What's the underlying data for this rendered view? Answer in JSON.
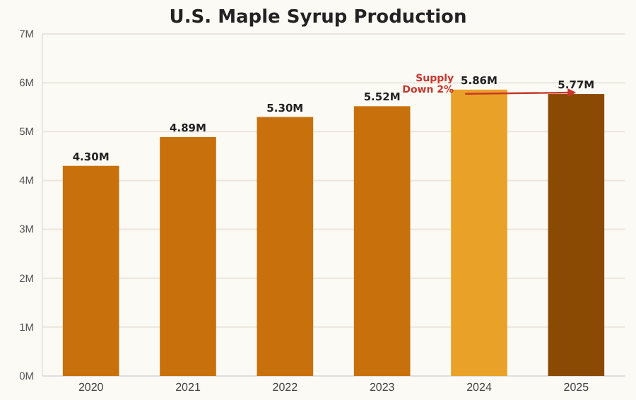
{
  "chart_data": {
    "type": "bar",
    "title": "U.S. Maple Syrup Production",
    "categories": [
      "2020",
      "2021",
      "2022",
      "2023",
      "2024",
      "2025"
    ],
    "values": [
      4.3,
      4.89,
      5.3,
      5.52,
      5.86,
      5.77
    ],
    "colors": [
      "#c8700c",
      "#c8700c",
      "#c8700c",
      "#c8700c",
      "#e9a227",
      "#8b4a04"
    ],
    "value_labels": [
      "4.30M",
      "4.89M",
      "5.30M",
      "5.52M",
      "5.86M",
      "5.77M"
    ],
    "ylim": [
      0,
      7
    ],
    "yticks": [
      {
        "value": 0,
        "label": "0M"
      },
      {
        "value": 1,
        "label": "1M"
      },
      {
        "value": 2,
        "label": "2M"
      },
      {
        "value": 3,
        "label": "3M"
      },
      {
        "value": 4,
        "label": "4M"
      },
      {
        "value": 5,
        "label": "5M"
      },
      {
        "value": 6,
        "label": "6M"
      },
      {
        "value": 7,
        "label": "7M"
      }
    ],
    "grid": "y",
    "annotations": [
      {
        "text": "Supply Down 2%",
        "x": "2024",
        "y": 5.86
      }
    ]
  }
}
